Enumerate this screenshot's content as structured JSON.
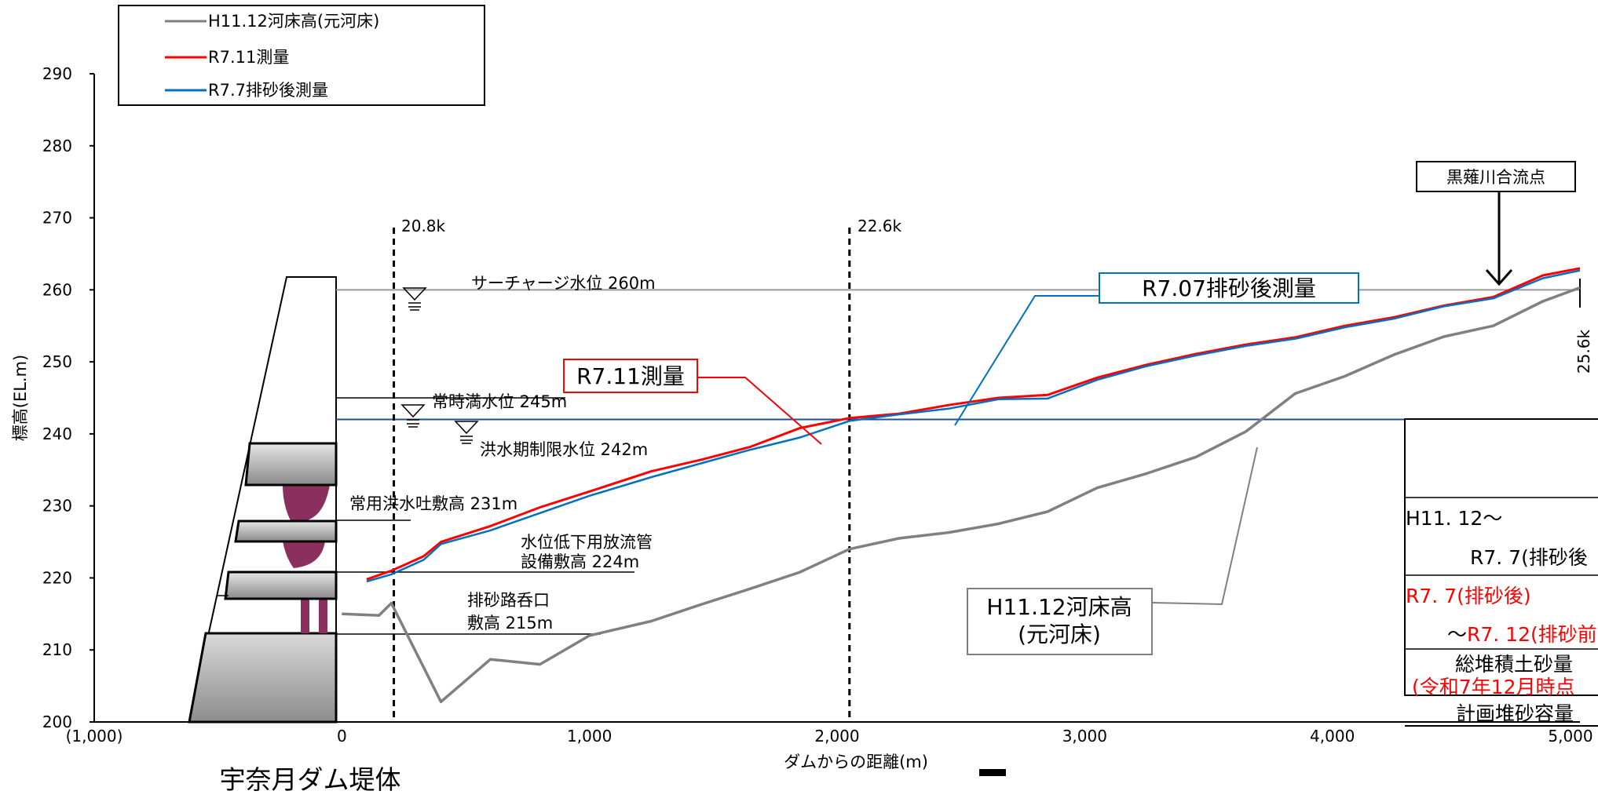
{
  "chart_data": {
    "type": "line",
    "xlabel": "ダムからの距離(m)",
    "ylabel": "標高(EL.m)",
    "xlim": [
      -1000,
      5000
    ],
    "ylim": [
      200,
      290
    ],
    "x_ticks": [
      "(1,000)",
      "0",
      "1,000",
      "2,000",
      "3,000",
      "4,000",
      "5,000"
    ],
    "y_ticks": [
      "200",
      "210",
      "220",
      "230",
      "240",
      "250",
      "260",
      "270",
      "280",
      "290"
    ],
    "grid": false,
    "legend_position": "top-left",
    "series": [
      {
        "name": "H11.12河床高(元河床)",
        "color": "#808080",
        "x": [
          0,
          150,
          200,
          400,
          600,
          800,
          1000,
          1250,
          1450,
          1650,
          1850,
          2050,
          2250,
          2450,
          2650,
          2850,
          3050,
          3250,
          3450,
          3650,
          3850,
          4050,
          4250,
          4450,
          4650,
          4850,
          5000
        ],
        "y": [
          215,
          214.8,
          216.5,
          202.8,
          208.7,
          208,
          212,
          214,
          216.3,
          218.5,
          220.8,
          224,
          225.5,
          226.3,
          227.5,
          229.2,
          232.5,
          234.5,
          236.8,
          240.3,
          245.6,
          248,
          251,
          253.5,
          255,
          258.4,
          260.3
        ]
      },
      {
        "name": "R7.11測量",
        "color": "#ff0000",
        "x": [
          100,
          200,
          330,
          400,
          600,
          800,
          1000,
          1250,
          1450,
          1650,
          1850,
          2050,
          2250,
          2450,
          2650,
          2850,
          3050,
          3250,
          3450,
          3650,
          3850,
          4050,
          4250,
          4450,
          4650,
          4850,
          5000
        ],
        "y": [
          219.8,
          221,
          223,
          225,
          227.2,
          229.8,
          232,
          234.8,
          236.4,
          238.2,
          240.8,
          242.2,
          242.8,
          244,
          245,
          245.4,
          247.8,
          249.6,
          251.1,
          252.4,
          253.4,
          255,
          256.2,
          257.8,
          259,
          262,
          263
        ]
      },
      {
        "name": "R7.7排砂後測量",
        "color": "#0070c0",
        "x": [
          100,
          200,
          330,
          400,
          600,
          800,
          1000,
          1250,
          1450,
          1650,
          1850,
          2050,
          2250,
          2450,
          2650,
          2850,
          3050,
          3250,
          3450,
          3650,
          3850,
          4050,
          4250,
          4450,
          4650,
          4850,
          5000
        ],
        "y": [
          219.5,
          220.5,
          222.5,
          224.7,
          226.6,
          229,
          231.4,
          234,
          235.9,
          237.8,
          239.5,
          241.8,
          242.7,
          243.5,
          244.8,
          244.9,
          247.5,
          249.4,
          250.9,
          252.2,
          253.2,
          254.8,
          256,
          257.7,
          258.8,
          261.6,
          262.7
        ]
      }
    ],
    "reference_lines": [
      {
        "label": "サーチャージ水位 260m",
        "y": 260
      },
      {
        "label": "常時満水位 245m",
        "y": 245
      },
      {
        "label": "洪水期制限水位 242m",
        "y": 242
      }
    ],
    "section_markers": [
      {
        "label": "20.8k",
        "x": 210
      },
      {
        "label": "22.6k",
        "x": 2050
      },
      {
        "label": "25.6k",
        "x": 5000
      }
    ],
    "annotations": {
      "dam_label": "宇奈月ダム堤体",
      "kurokawa": "黒薙川合流点",
      "callout_r711": "R7.11測量",
      "callout_r707": "R7.07排砂後測量",
      "callout_h11_line1": "H11.12河床高",
      "callout_h11_line2": "(元河床)",
      "jouyou": "常用洪水吐敷高 231m",
      "teika_line1": "水位低下用放流管",
      "teika_line2": "設備敷高 224m",
      "haisa_line1": "排砂路呑口",
      "haisa_line2": "敷高 215m"
    },
    "table": {
      "row1_line1": "H11. 12～",
      "row1_line2": "R7. 7(排砂後",
      "row2_line1": "R7. 7(排砂後)",
      "row2_line2_prefix": "～",
      "row2_line2_red": "R7. 12(排砂前",
      "row3_line1": "総堆積土砂量",
      "row3_line2": "(令和7年12月時点",
      "row4": "計画堆砂容量"
    },
    "colors": {
      "h11": "#808080",
      "r711": "#ff0000",
      "r77": "#0070c0",
      "dam_body": "#999999",
      "outlet": "#8b2f5f"
    }
  }
}
